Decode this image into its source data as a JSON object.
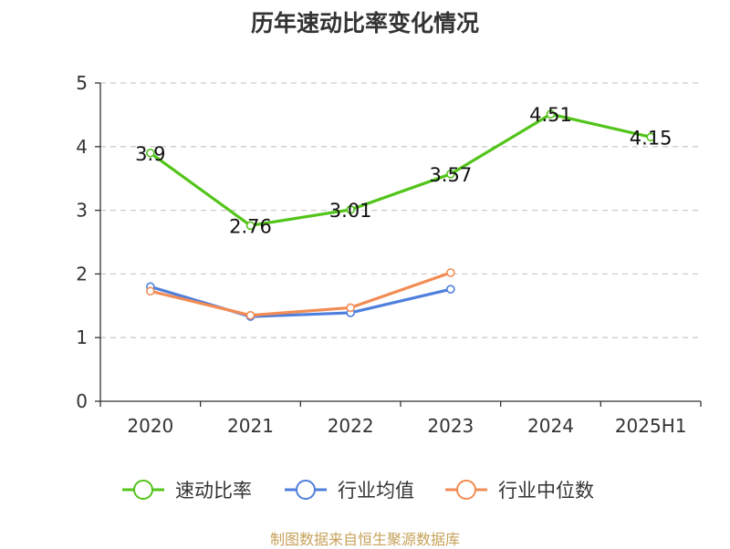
{
  "colors": {
    "series_green": "#52c41a",
    "series_blue": "#4e7fdc",
    "series_orange": "#f28c54",
    "grid": "#cccccc",
    "axis": "#333333"
  },
  "source_note": "制图数据来自恒生聚源数据库",
  "chart_data": {
    "type": "line",
    "title": "历年速动比率变化情况",
    "xlabel": "",
    "ylabel": "",
    "categories": [
      "2020",
      "2021",
      "2022",
      "2023",
      "2024",
      "2025H1"
    ],
    "ylim": [
      0,
      5
    ],
    "yticks": [
      0,
      1,
      2,
      3,
      4,
      5
    ],
    "grid": true,
    "legend_position": "bottom",
    "series": [
      {
        "name": "速动比率",
        "color": "#52c41a",
        "values": [
          3.9,
          2.76,
          3.01,
          3.57,
          4.51,
          4.15
        ],
        "labels": [
          "3.9",
          "2.76",
          "3.01",
          "3.57",
          "4.51",
          "4.15"
        ],
        "show_labels": true
      },
      {
        "name": "行业均值",
        "color": "#4e7fdc",
        "values": [
          1.8,
          1.33,
          1.39,
          1.76,
          null,
          null
        ],
        "show_labels": false
      },
      {
        "name": "行业中位数",
        "color": "#f28c54",
        "values": [
          1.73,
          1.35,
          1.47,
          2.02,
          null,
          null
        ],
        "show_labels": false
      }
    ]
  }
}
